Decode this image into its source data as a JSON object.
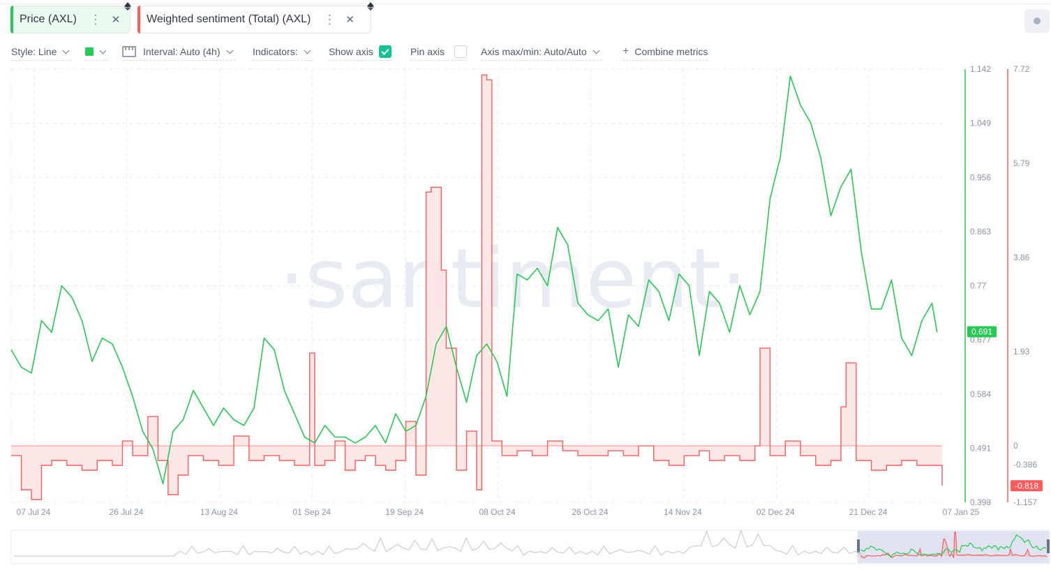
{
  "tabs": [
    {
      "label": "Price (AXL)",
      "color": "#26c953",
      "bg": "#eafaf0"
    },
    {
      "label": "Weighted sentiment (Total) (AXL)",
      "color": "#ff5b5b",
      "bg": "#ffffff"
    }
  ],
  "toolbar": {
    "style": "Style: Line",
    "interval": "Interval: Auto (4h)",
    "indicators": "Indicators:",
    "show_axis": "Show axis",
    "pin_axis": "Pin axis",
    "axis_maxmin": "Axis max/min: Auto/Auto",
    "combine": "Combine metrics",
    "metric_color": "#26c953"
  },
  "watermark": "·santiment·",
  "colors": {
    "price": "#26c953",
    "sentiment": "#ff5b5b",
    "sentiment_fill": "#fde3e3",
    "brand": "#14c393"
  },
  "chart_data": {
    "type": "line",
    "x_ticks": [
      "07 Jul 24",
      "26 Jul 24",
      "13 Aug 24",
      "01 Sep 24",
      "19 Sep 24",
      "08 Oct 24",
      "26 Oct 24",
      "14 Nov 24",
      "02 Dec 24",
      "21 Dec 24",
      "07 Jan 25"
    ],
    "x_range": [
      "2024-07-05",
      "2025-01-05"
    ],
    "y_left": {
      "name": "Price (AXL)",
      "ticks": [
        "1.142",
        "1.049",
        "0.956",
        "0.863",
        "0.77",
        "0.677",
        "0.584",
        "0.491",
        "0.398"
      ],
      "min": 0.398,
      "max": 1.142,
      "current": "0.691"
    },
    "y_right": {
      "name": "Weighted sentiment (Total) (AXL)",
      "ticks": [
        "7.72",
        "5.79",
        "3.86",
        "1.93",
        "0",
        "-0.386",
        "-1.157"
      ],
      "min": -1.157,
      "max": 7.72,
      "current": "-0.818"
    },
    "grid": true,
    "series": [
      {
        "name": "Price (AXL)",
        "color": "#26c953",
        "axis": "left",
        "x": [
          "2024-07-05",
          "2024-07-07",
          "2024-07-09",
          "2024-07-11",
          "2024-07-13",
          "2024-07-15",
          "2024-07-17",
          "2024-07-19",
          "2024-07-21",
          "2024-07-23",
          "2024-07-25",
          "2024-07-27",
          "2024-07-29",
          "2024-07-31",
          "2024-08-02",
          "2024-08-04",
          "2024-08-06",
          "2024-08-08",
          "2024-08-10",
          "2024-08-12",
          "2024-08-14",
          "2024-08-16",
          "2024-08-18",
          "2024-08-20",
          "2024-08-22",
          "2024-08-24",
          "2024-08-26",
          "2024-08-28",
          "2024-08-30",
          "2024-09-01",
          "2024-09-03",
          "2024-09-05",
          "2024-09-07",
          "2024-09-09",
          "2024-09-11",
          "2024-09-13",
          "2024-09-15",
          "2024-09-17",
          "2024-09-19",
          "2024-09-21",
          "2024-09-23",
          "2024-09-25",
          "2024-09-27",
          "2024-09-29",
          "2024-10-01",
          "2024-10-03",
          "2024-10-05",
          "2024-10-07",
          "2024-10-09",
          "2024-10-11",
          "2024-10-13",
          "2024-10-15",
          "2024-10-17",
          "2024-10-19",
          "2024-10-21",
          "2024-10-23",
          "2024-10-25",
          "2024-10-27",
          "2024-10-29",
          "2024-10-31",
          "2024-11-02",
          "2024-11-04",
          "2024-11-06",
          "2024-11-08",
          "2024-11-10",
          "2024-11-12",
          "2024-11-14",
          "2024-11-16",
          "2024-11-18",
          "2024-11-20",
          "2024-11-22",
          "2024-11-24",
          "2024-11-26",
          "2024-11-28",
          "2024-11-30",
          "2024-12-02",
          "2024-12-04",
          "2024-12-06",
          "2024-12-08",
          "2024-12-10",
          "2024-12-12",
          "2024-12-14",
          "2024-12-16",
          "2024-12-18",
          "2024-12-20",
          "2024-12-22",
          "2024-12-24",
          "2024-12-26",
          "2024-12-28",
          "2024-12-30",
          "2025-01-01",
          "2025-01-03",
          "2025-01-04"
        ],
        "values": [
          0.66,
          0.63,
          0.62,
          0.71,
          0.69,
          0.77,
          0.75,
          0.71,
          0.64,
          0.68,
          0.67,
          0.63,
          0.58,
          0.52,
          0.49,
          0.43,
          0.52,
          0.54,
          0.59,
          0.56,
          0.53,
          0.56,
          0.54,
          0.53,
          0.56,
          0.68,
          0.66,
          0.59,
          0.55,
          0.51,
          0.5,
          0.53,
          0.51,
          0.51,
          0.5,
          0.51,
          0.53,
          0.5,
          0.55,
          0.52,
          0.53,
          0.58,
          0.67,
          0.7,
          0.63,
          0.57,
          0.65,
          0.67,
          0.64,
          0.58,
          0.79,
          0.78,
          0.8,
          0.77,
          0.87,
          0.84,
          0.74,
          0.72,
          0.71,
          0.73,
          0.63,
          0.72,
          0.7,
          0.78,
          0.76,
          0.71,
          0.79,
          0.77,
          0.65,
          0.76,
          0.74,
          0.69,
          0.77,
          0.72,
          0.76,
          0.92,
          0.99,
          1.13,
          1.08,
          1.05,
          0.99,
          0.89,
          0.94,
          0.97,
          0.83,
          0.73,
          0.73,
          0.78,
          0.68,
          0.65,
          0.71,
          0.74,
          0.69
        ]
      },
      {
        "name": "Weighted sentiment (Total) (AXL)",
        "color": "#ff5b5b",
        "axis": "right",
        "x": [
          "2024-07-05",
          "2024-07-07",
          "2024-07-09",
          "2024-07-11",
          "2024-07-13",
          "2024-07-16",
          "2024-07-19",
          "2024-07-22",
          "2024-07-25",
          "2024-07-27",
          "2024-07-29",
          "2024-08-01",
          "2024-08-03",
          "2024-08-05",
          "2024-08-07",
          "2024-08-09",
          "2024-08-12",
          "2024-08-15",
          "2024-08-18",
          "2024-08-21",
          "2024-08-24",
          "2024-08-27",
          "2024-08-30",
          "2024-09-02",
          "2024-09-03",
          "2024-09-05",
          "2024-09-07",
          "2024-09-09",
          "2024-09-11",
          "2024-09-13",
          "2024-09-15",
          "2024-09-17",
          "2024-09-19",
          "2024-09-21",
          "2024-09-23",
          "2024-09-25",
          "2024-09-26",
          "2024-09-28",
          "2024-09-29",
          "2024-10-01",
          "2024-10-03",
          "2024-10-05",
          "2024-10-06",
          "2024-10-07",
          "2024-10-08",
          "2024-10-10",
          "2024-10-13",
          "2024-10-16",
          "2024-10-19",
          "2024-10-22",
          "2024-10-25",
          "2024-10-28",
          "2024-10-31",
          "2024-11-03",
          "2024-11-06",
          "2024-11-09",
          "2024-11-12",
          "2024-11-15",
          "2024-11-18",
          "2024-11-20",
          "2024-11-23",
          "2024-11-26",
          "2024-11-29",
          "2024-11-30",
          "2024-12-02",
          "2024-12-05",
          "2024-12-08",
          "2024-12-11",
          "2024-12-14",
          "2024-12-16",
          "2024-12-17",
          "2024-12-19",
          "2024-12-20",
          "2024-12-22",
          "2024-12-25",
          "2024-12-28",
          "2024-12-31",
          "2025-01-02",
          "2025-01-04",
          "2025-01-05"
        ],
        "values": [
          -0.2,
          -0.9,
          -1.1,
          -0.4,
          -0.3,
          -0.4,
          -0.5,
          -0.3,
          -0.4,
          0.1,
          -0.2,
          0.6,
          -0.3,
          -1.0,
          -0.6,
          -0.2,
          -0.3,
          -0.4,
          0.2,
          -0.3,
          -0.2,
          -0.3,
          -0.4,
          1.9,
          -0.4,
          -0.3,
          0.1,
          -0.5,
          -0.3,
          -0.2,
          -0.4,
          -0.5,
          -0.3,
          0.5,
          -0.6,
          5.2,
          5.3,
          3.6,
          2.0,
          -0.5,
          0.3,
          -0.9,
          7.6,
          7.5,
          0.1,
          -0.2,
          -0.1,
          -0.2,
          0.1,
          -0.1,
          -0.2,
          -0.2,
          -0.1,
          -0.2,
          0.0,
          -0.3,
          -0.4,
          -0.2,
          -0.1,
          -0.3,
          -0.2,
          -0.3,
          0.0,
          2.0,
          -0.2,
          0.1,
          -0.2,
          -0.4,
          -0.3,
          0.8,
          1.7,
          -0.3,
          -0.3,
          -0.5,
          -0.4,
          -0.3,
          -0.4,
          -0.4,
          -0.4,
          -0.818
        ]
      }
    ]
  }
}
